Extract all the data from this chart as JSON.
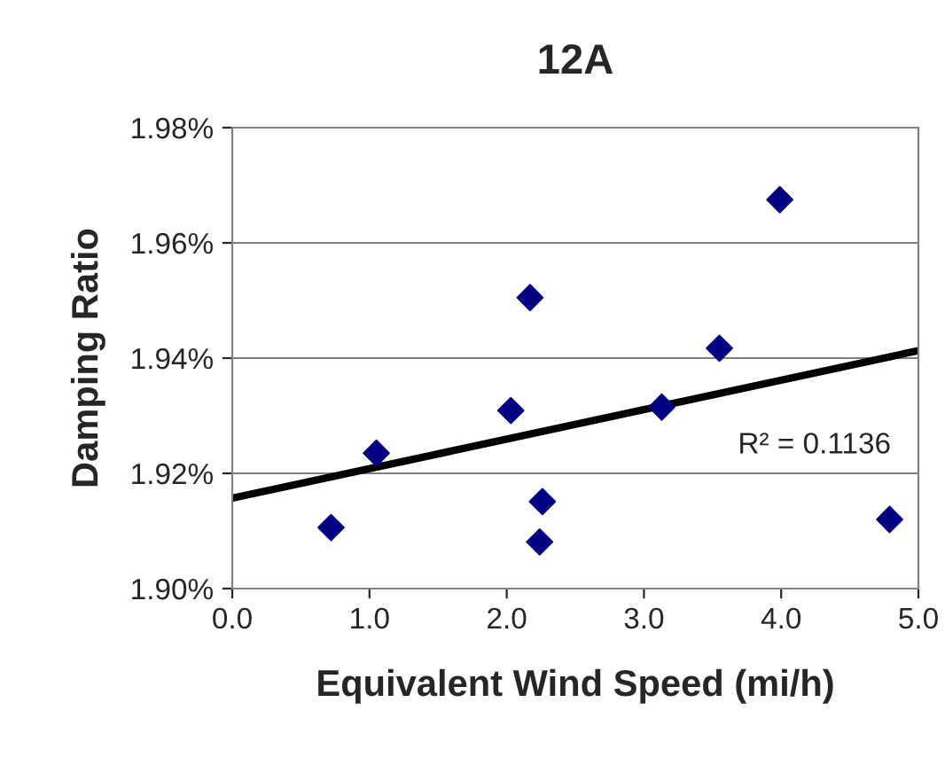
{
  "chart_data": {
    "type": "scatter",
    "title": "12A",
    "xlabel": "Equivalent Wind Speed (mi/h)",
    "ylabel": "Damping Ratio",
    "xlim": [
      0,
      5
    ],
    "xticks": [
      {
        "value": 0,
        "label": "0.0"
      },
      {
        "value": 1,
        "label": "1.0"
      },
      {
        "value": 2,
        "label": "2.0"
      },
      {
        "value": 3,
        "label": "3.0"
      },
      {
        "value": 4,
        "label": "4.0"
      },
      {
        "value": 5,
        "label": "5.0"
      }
    ],
    "ylim": [
      1.9,
      1.98
    ],
    "yticks": [
      {
        "value": 1.9,
        "label": "1.90%"
      },
      {
        "value": 1.92,
        "label": "1.92%"
      },
      {
        "value": 1.94,
        "label": "1.94%"
      },
      {
        "value": 1.96,
        "label": "1.96%"
      },
      {
        "value": 1.98,
        "label": "1.98%"
      }
    ],
    "grid": "y",
    "series": [
      {
        "marker": "diamond",
        "color": "#000080",
        "x": [
          0.72,
          1.05,
          2.03,
          2.17,
          2.26,
          2.24,
          3.13,
          3.55,
          3.99,
          4.79
        ],
        "values": [
          1.9106,
          1.9235,
          1.9309,
          1.9505,
          1.9151,
          1.9081,
          1.9315,
          1.9417,
          1.9675,
          1.912
        ]
      },
      {
        "type": "line",
        "marker": "none",
        "color": "#000000",
        "x": [
          0,
          5
        ],
        "values": [
          1.9157,
          1.9413
        ]
      }
    ],
    "annotations": [
      "R² = 0.1136"
    ]
  }
}
